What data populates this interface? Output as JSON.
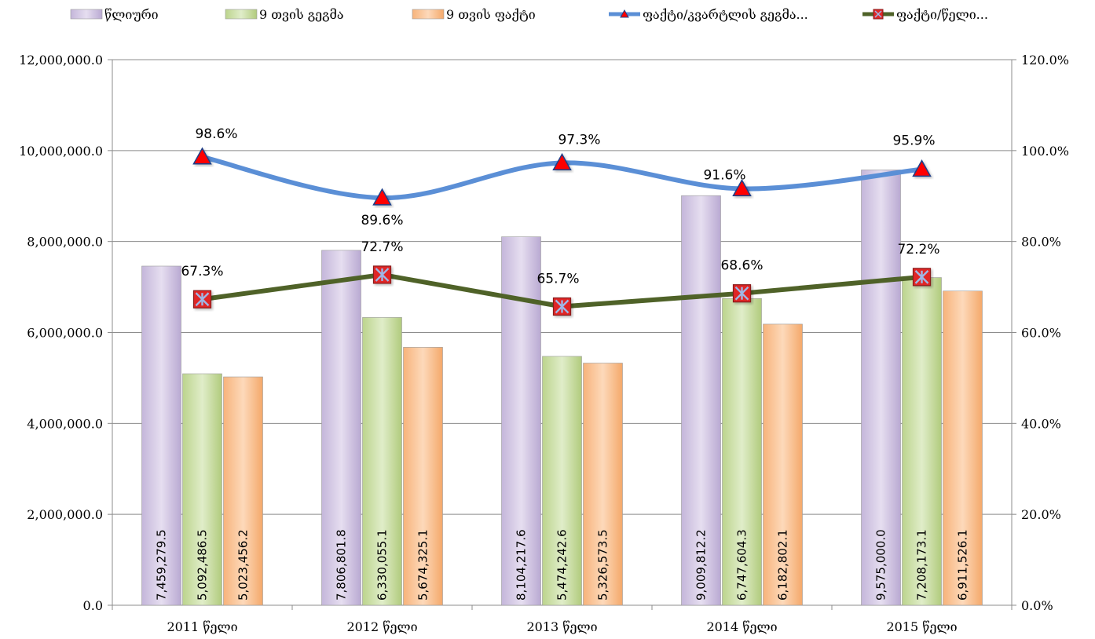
{
  "chart_data": {
    "type": "bar",
    "categories": [
      "2011 წელი",
      "2012 წელი",
      "2013 წელი",
      "2014 წელი",
      "2015 წელი"
    ],
    "series": [
      {
        "name": "წლიური",
        "kind": "bar",
        "axis": "left",
        "color": "#d4c8e4",
        "values": [
          7459279.5,
          7806801.8,
          8104217.6,
          9009812.2,
          9575000.0
        ],
        "labels": [
          "7,459,279.5",
          "7,806,801.8",
          "8,104,217.6",
          "9,009,812.2",
          "9,575,000.0"
        ]
      },
      {
        "name": "9 თვის გეგმა",
        "kind": "bar",
        "axis": "left",
        "color": "#cfe0ad",
        "values": [
          5092486.5,
          6330055.1,
          5474242.6,
          6747604.3,
          7208173.1
        ],
        "labels": [
          "5,092,486.5",
          "6,330,055.1",
          "5,474,242.6",
          "6,747,604.3",
          "7,208,173.1"
        ]
      },
      {
        "name": "9 თვის ფაქტი",
        "kind": "bar",
        "axis": "left",
        "color": "#fbc79d",
        "values": [
          5023456.2,
          5674325.1,
          5326573.5,
          6182802.1,
          6911526.1
        ],
        "labels": [
          "5,023,456.2",
          "5,674,325.1",
          "5,326,573.5",
          "6,182,802.1",
          "6,911,526.1"
        ]
      },
      {
        "name": "ფაქტი/კვარტლის გეგმა...",
        "kind": "line",
        "axis": "right",
        "color": "#5b8fd6",
        "marker": "triangle",
        "values": [
          98.6,
          89.6,
          97.3,
          91.6,
          95.9
        ],
        "labels": [
          "98.6%",
          "89.6%",
          "97.3%",
          "91.6%",
          "95.9%"
        ]
      },
      {
        "name": "ფაქტი/წელი...",
        "kind": "line",
        "axis": "right",
        "color": "#4f6228",
        "marker": "x-square",
        "values": [
          67.3,
          72.7,
          65.7,
          68.6,
          72.2
        ],
        "labels": [
          "67.3%",
          "72.7%",
          "65.7%",
          "68.6%",
          "72.2%"
        ]
      }
    ],
    "y_left": {
      "ylim": [
        0,
        12000000
      ],
      "ticks": [
        0,
        2000000,
        4000000,
        6000000,
        8000000,
        10000000,
        12000000
      ],
      "tick_labels": [
        "0.0",
        "2,000,000.0",
        "4,000,000.0",
        "6,000,000.0",
        "8,000,000.0",
        "10,000,000.0",
        "12,000,000.0"
      ]
    },
    "y_right": {
      "ylim": [
        0,
        120
      ],
      "ticks": [
        0,
        20,
        40,
        60,
        80,
        100,
        120
      ],
      "tick_labels": [
        "0.0%",
        "20.0%",
        "40.0%",
        "60.0%",
        "80.0%",
        "100.0%",
        "120.0%"
      ]
    },
    "grid": true,
    "legend_position": "top"
  }
}
